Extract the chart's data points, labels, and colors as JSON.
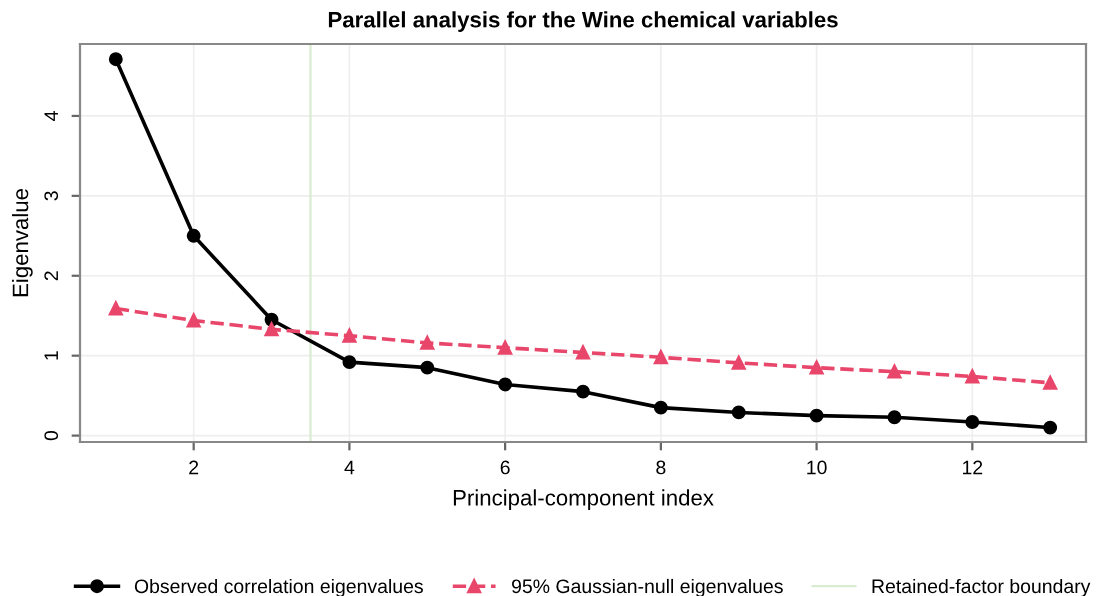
{
  "chart_data": {
    "type": "line",
    "title": "Parallel analysis for the Wine chemical variables",
    "xlabel": "Principal-component index",
    "ylabel": "Eigenvalue",
    "x": [
      1,
      2,
      3,
      4,
      5,
      6,
      7,
      8,
      9,
      10,
      11,
      12,
      13
    ],
    "series": [
      {
        "name": "Observed correlation eigenvalues",
        "color": "#000000",
        "marker": "circle",
        "line_style": "solid",
        "values": [
          4.71,
          2.5,
          1.45,
          0.92,
          0.85,
          0.64,
          0.55,
          0.35,
          0.29,
          0.25,
          0.23,
          0.17,
          0.1
        ]
      },
      {
        "name": "95% Gaussian-null eigenvalues",
        "color": "#e8466a",
        "marker": "triangle",
        "line_style": "dashed",
        "values": [
          1.59,
          1.44,
          1.33,
          1.25,
          1.16,
          1.1,
          1.04,
          0.98,
          0.91,
          0.85,
          0.8,
          0.74,
          0.66
        ]
      }
    ],
    "ref_lines": [
      {
        "axis": "x",
        "value": 3.5,
        "label": "Retained-factor boundary",
        "color": "#d8ecd0"
      }
    ],
    "xlim": [
      0.54,
      13.46
    ],
    "ylim": [
      -0.08,
      4.9
    ],
    "xticks": [
      2,
      4,
      6,
      8,
      10,
      12
    ],
    "yticks": [
      0,
      1,
      2,
      3,
      4
    ],
    "grid": true,
    "legend": "bottom"
  }
}
